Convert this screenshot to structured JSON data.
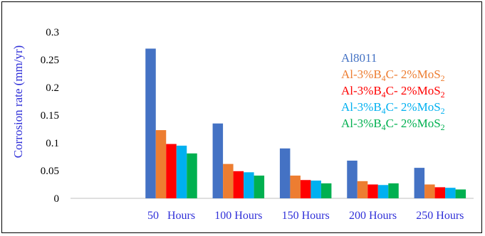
{
  "chart_data": {
    "type": "bar",
    "title": "",
    "xlabel": "",
    "ylabel": "Corrosion rate (mm/yr)",
    "ylim": [
      0,
      0.3
    ],
    "yticks": [
      "0",
      "0.05",
      "0.1",
      "0.15",
      "0.2",
      "0.25",
      "0.3"
    ],
    "grid": false,
    "legend_position": "top-right",
    "categories": [
      "",
      "50   Hours",
      "100 Hours",
      "150 Hours",
      "200 Hours",
      "250 Hours"
    ],
    "series": [
      {
        "name": "Al8011",
        "legend_main": "Al8011",
        "legend_parts": [],
        "color": "#4472c4",
        "values": [
          null,
          0.27,
          0.135,
          0.09,
          0.068,
          0.055
        ]
      },
      {
        "name": "Al-3%B4C- 2%MoS2",
        "legend_main": "Al-3%B",
        "legend_parts": [
          [
            "4",
            "C- 2%MoS"
          ],
          [
            "2",
            ""
          ]
        ],
        "color": "#ed7d31",
        "values": [
          null,
          0.123,
          0.062,
          0.041,
          0.031,
          0.025
        ]
      },
      {
        "name": "Al-3%B4C- 2%MoS2",
        "legend_main": "Al-3%B",
        "legend_parts": [
          [
            "4",
            "C- 2%MoS"
          ],
          [
            "2",
            ""
          ]
        ],
        "color": "#ff0000",
        "values": [
          null,
          0.098,
          0.049,
          0.033,
          0.025,
          0.02
        ]
      },
      {
        "name": "Al-3%B4C- 2%MoS2",
        "legend_main": "Al-3%B",
        "legend_parts": [
          [
            "4",
            "C- 2%MoS"
          ],
          [
            "2",
            ""
          ]
        ],
        "color": "#00b0f0",
        "values": [
          null,
          0.095,
          0.047,
          0.032,
          0.024,
          0.019
        ]
      },
      {
        "name": "Al-3%B4C- 2%MoS2",
        "legend_main": "Al-3%B",
        "legend_parts": [
          [
            "4",
            "C- 2%MoS"
          ],
          [
            "2",
            ""
          ]
        ],
        "color": "#00b050",
        "values": [
          null,
          0.081,
          0.041,
          0.027,
          0.027,
          0.016
        ]
      }
    ]
  }
}
